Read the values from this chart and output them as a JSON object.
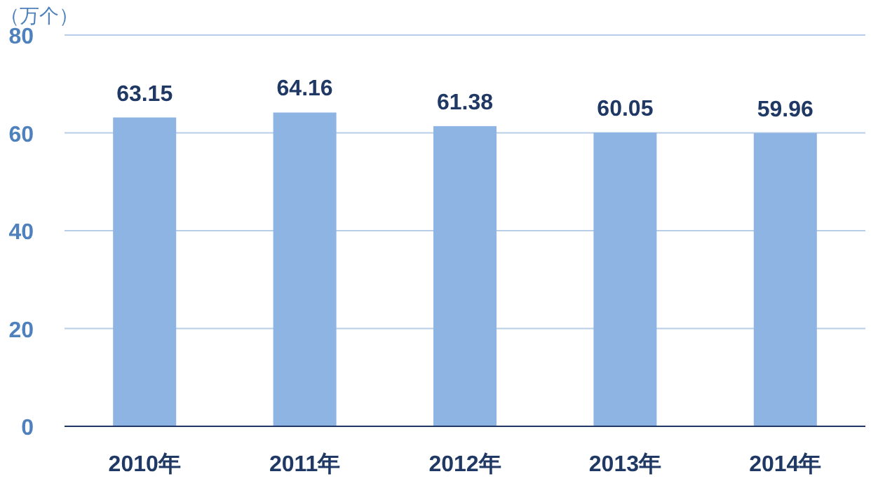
{
  "chart_data": {
    "type": "bar",
    "ylabel": "（万个）",
    "categories": [
      "2010年",
      "2011年",
      "2012年",
      "2013年",
      "2014年"
    ],
    "values": [
      63.15,
      64.16,
      61.38,
      60.05,
      59.96
    ],
    "color": "#8eb4e3",
    "ylim": [
      0,
      80
    ],
    "yticks": [
      0,
      20,
      40,
      60,
      80
    ],
    "grid": "y",
    "data_labels": true
  }
}
